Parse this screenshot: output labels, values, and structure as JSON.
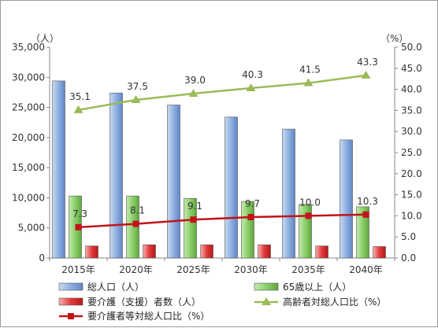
{
  "chart_data": {
    "type": "bar",
    "categories": [
      "2015年",
      "2020年",
      "2025年",
      "2030年",
      "2035年",
      "2040年"
    ],
    "left_axis": {
      "unit": "（人）",
      "min": 0,
      "max": 35000,
      "step": 5000,
      "ticks": [
        "0",
        "5,000",
        "10,000",
        "15,000",
        "20,000",
        "25,000",
        "30,000",
        "35,000"
      ]
    },
    "right_axis": {
      "unit": "（%）",
      "min": 0,
      "max": 50,
      "step": 5,
      "ticks": [
        "0.0",
        "5.0",
        "10.0",
        "15.0",
        "20.0",
        "25.0",
        "30.0",
        "35.0",
        "40.0",
        "45.0",
        "50.0"
      ]
    },
    "bar_series": [
      {
        "name": "総人口（人）",
        "values": [
          29400,
          27400,
          25400,
          23400,
          21400,
          19600
        ],
        "color": "#8fb0e0"
      },
      {
        "name": "65歳以上（人）",
        "values": [
          10300,
          10300,
          9900,
          9400,
          8900,
          8500
        ],
        "color": "#8ccf6b"
      },
      {
        "name": "要介護（支援）者数（人）",
        "values": [
          2000,
          2200,
          2200,
          2200,
          2000,
          1900
        ],
        "color": "#e23a3a"
      }
    ],
    "line_series": [
      {
        "name": "高齢者対総人口比（%）",
        "values": [
          35.1,
          37.5,
          39.0,
          40.3,
          41.5,
          43.3
        ],
        "labels": [
          "35.1",
          "37.5",
          "39.0",
          "40.3",
          "41.5",
          "43.3"
        ],
        "color": "#9bbb59",
        "marker": "triangle"
      },
      {
        "name": "要介護者等対総人口比（%）",
        "values": [
          7.3,
          8.1,
          9.1,
          9.7,
          10.0,
          10.3
        ],
        "labels": [
          "7.3",
          "8.1",
          "9.1",
          "9.7",
          "10.0",
          "10.3"
        ],
        "color": "#c0141a",
        "marker": "square"
      }
    ],
    "legend": [
      {
        "label": "総人口（人）",
        "kind": "bar",
        "color": "#8fb0e0"
      },
      {
        "label": "65歳以上（人）",
        "kind": "bar",
        "color": "#8ccf6b"
      },
      {
        "label": "要介護（支援）者数（人）",
        "kind": "bar",
        "color": "#e23a3a"
      },
      {
        "label": "高齢者対総人口比（%）",
        "kind": "line",
        "color": "#9bbb59",
        "marker": "triangle"
      },
      {
        "label": "要介護者等対総人口比（%）",
        "kind": "line",
        "color": "#c0141a",
        "marker": "square"
      }
    ],
    "legend_position": "bottom",
    "grid": false
  }
}
